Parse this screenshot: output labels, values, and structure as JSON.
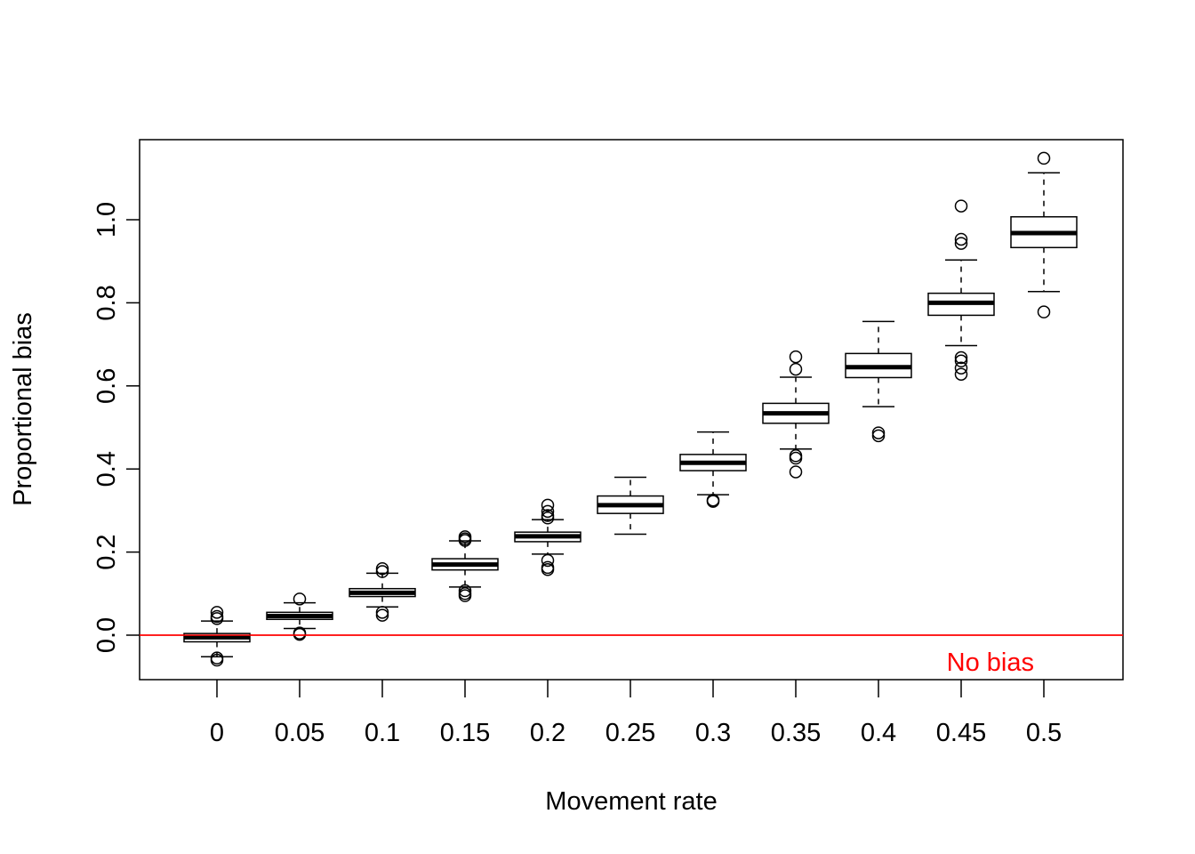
{
  "chart_data": {
    "type": "boxplot",
    "title": "",
    "xlabel": "Movement rate",
    "ylabel": "Proportional bias",
    "ylim": [
      -0.105,
      1.18
    ],
    "yticks": [
      0.0,
      0.2,
      0.4,
      0.6,
      0.8,
      1.0
    ],
    "ytick_labels": [
      "0.0",
      "0.2",
      "0.4",
      "0.6",
      "0.8",
      "1.0"
    ],
    "grid": false,
    "reference_line": {
      "y": 0,
      "label": "No bias",
      "color": "#ff0000"
    },
    "boxes": [
      {
        "category": "0",
        "whisker_low": -0.052,
        "q1": -0.016,
        "median": -0.005,
        "q3": 0.004,
        "whisker_high": 0.034,
        "outliers": [
          0.055,
          0.045,
          0.04,
          -0.055,
          -0.06
        ]
      },
      {
        "category": "0.05",
        "whisker_low": 0.016,
        "q1": 0.038,
        "median": 0.046,
        "q3": 0.055,
        "whisker_high": 0.078,
        "outliers": [
          0.087,
          0.005,
          0.002
        ]
      },
      {
        "category": "0.1",
        "whisker_low": 0.068,
        "q1": 0.093,
        "median": 0.102,
        "q3": 0.112,
        "whisker_high": 0.149,
        "outliers": [
          0.16,
          0.153,
          0.055,
          0.048
        ]
      },
      {
        "category": "0.15",
        "whisker_low": 0.116,
        "q1": 0.157,
        "median": 0.17,
        "q3": 0.184,
        "whisker_high": 0.227,
        "outliers": [
          0.237,
          0.232,
          0.228,
          0.107,
          0.1,
          0.095
        ]
      },
      {
        "category": "0.2",
        "whisker_low": 0.195,
        "q1": 0.225,
        "median": 0.238,
        "q3": 0.248,
        "whisker_high": 0.278,
        "outliers": [
          0.313,
          0.298,
          0.288,
          0.282,
          0.18,
          0.163,
          0.158
        ]
      },
      {
        "category": "0.25",
        "whisker_low": 0.243,
        "q1": 0.293,
        "median": 0.313,
        "q3": 0.335,
        "whisker_high": 0.38,
        "outliers": []
      },
      {
        "category": "0.3",
        "whisker_low": 0.338,
        "q1": 0.396,
        "median": 0.415,
        "q3": 0.435,
        "whisker_high": 0.489,
        "outliers": [
          0.325,
          0.322
        ]
      },
      {
        "category": "0.35",
        "whisker_low": 0.448,
        "q1": 0.51,
        "median": 0.534,
        "q3": 0.558,
        "whisker_high": 0.621,
        "outliers": [
          0.67,
          0.64,
          0.432,
          0.426,
          0.393
        ]
      },
      {
        "category": "0.4",
        "whisker_low": 0.55,
        "q1": 0.62,
        "median": 0.645,
        "q3": 0.678,
        "whisker_high": 0.755,
        "outliers": [
          0.487,
          0.48
        ]
      },
      {
        "category": "0.45",
        "whisker_low": 0.697,
        "q1": 0.77,
        "median": 0.8,
        "q3": 0.823,
        "whisker_high": 0.903,
        "outliers": [
          1.033,
          0.953,
          0.943,
          0.668,
          0.66,
          0.643,
          0.628
        ]
      },
      {
        "category": "0.5",
        "whisker_low": 0.827,
        "q1": 0.933,
        "median": 0.968,
        "q3": 1.007,
        "whisker_high": 1.113,
        "outliers": [
          1.148,
          0.778
        ]
      }
    ]
  }
}
